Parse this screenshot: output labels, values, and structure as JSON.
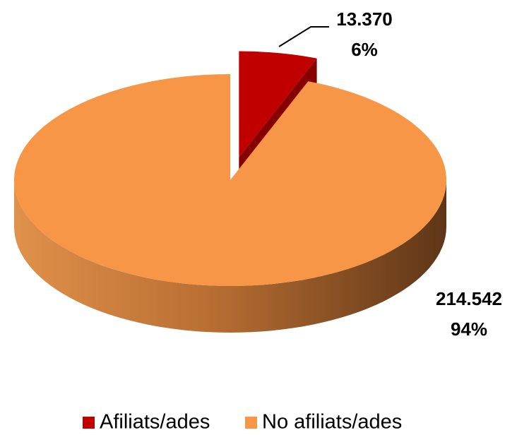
{
  "chart_data": {
    "type": "pie3d",
    "categories": [
      "Afiliats/ades",
      "No afiliats/ades"
    ],
    "values": [
      13370,
      214542
    ],
    "value_labels": [
      "13.370",
      "214.542"
    ],
    "percentages": [
      6,
      94
    ],
    "percentage_labels": [
      "6%",
      "94%"
    ],
    "colors": [
      "#c00000",
      "#f79646"
    ],
    "exploded": [
      true,
      false
    ],
    "legend": "bottom"
  }
}
